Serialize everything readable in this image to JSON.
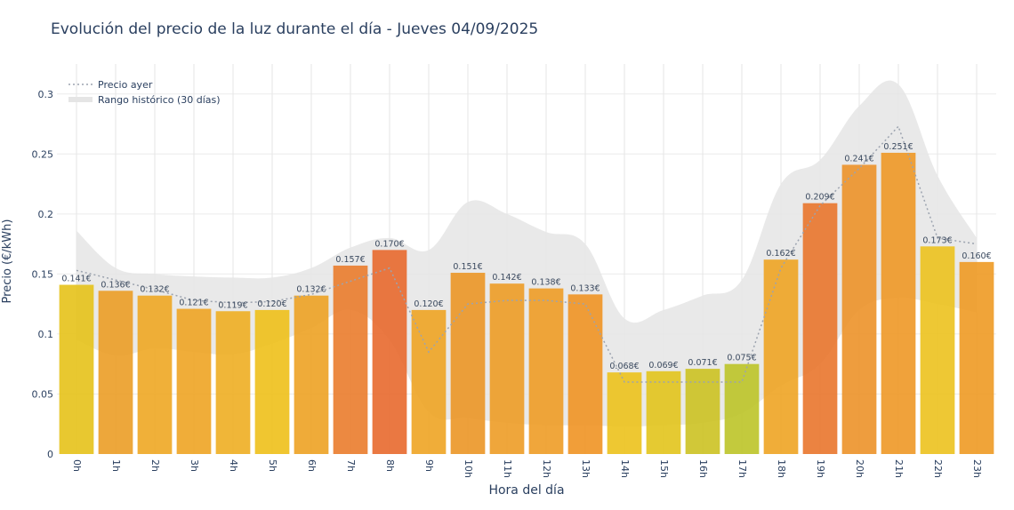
{
  "chart_data": {
    "type": "bar",
    "title": "Evolución del precio de la luz durante el día - Jueves 04/09/2025",
    "xlabel": "Hora del día",
    "ylabel": "Precio (€/kWh)",
    "ylim": [
      0,
      0.325
    ],
    "yticks": [
      0,
      0.05,
      0.1,
      0.15,
      0.2,
      0.25,
      0.3
    ],
    "ytick_labels": [
      "0",
      "0.05",
      "0.1",
      "0.15",
      "0.2",
      "0.25",
      "0.3"
    ],
    "grid": true,
    "legend_position": "top-left",
    "categories": [
      "0h",
      "1h",
      "2h",
      "3h",
      "4h",
      "5h",
      "6h",
      "7h",
      "8h",
      "9h",
      "10h",
      "11h",
      "12h",
      "13h",
      "14h",
      "15h",
      "16h",
      "17h",
      "18h",
      "19h",
      "20h",
      "21h",
      "22h",
      "23h"
    ],
    "values": [
      0.141,
      0.136,
      0.132,
      0.121,
      0.119,
      0.12,
      0.132,
      0.157,
      0.17,
      0.12,
      0.151,
      0.142,
      0.138,
      0.133,
      0.068,
      0.069,
      0.071,
      0.075,
      0.162,
      0.209,
      0.241,
      0.251,
      0.173,
      0.16
    ],
    "value_labels": [
      "0.141€",
      "0.136€",
      "0.132€",
      "0.121€",
      "0.119€",
      "0.120€",
      "0.132€",
      "0.157€",
      "0.170€",
      "0.120€",
      "0.151€",
      "0.142€",
      "0.138€",
      "0.133€",
      "0.068€",
      "0.069€",
      "0.071€",
      "0.075€",
      "0.162€",
      "0.209€",
      "0.241€",
      "0.251€",
      "0.173€",
      "0.160€"
    ],
    "bar_colors": [
      "#e6c21a",
      "#eb9d26",
      "#eea724",
      "#eea424",
      "#eeae22",
      "#eec01a",
      "#eda224",
      "#ea7c2c",
      "#e8692e",
      "#eea424",
      "#eb9626",
      "#ed9c26",
      "#ee9c26",
      "#ef9424",
      "#ecc21c",
      "#e2c41c",
      "#ccc222",
      "#bdc428",
      "#eea424",
      "#e9752c",
      "#ec9229",
      "#ee9826",
      "#ecc21e",
      "#ee9a24"
    ],
    "lines": [
      {
        "name": "Precio ayer",
        "style": "dotted",
        "color": "#9ca3af",
        "values": [
          0.153,
          0.145,
          0.137,
          0.128,
          0.126,
          0.127,
          0.133,
          0.144,
          0.155,
          0.085,
          0.125,
          0.128,
          0.128,
          0.125,
          0.06,
          0.06,
          0.06,
          0.06,
          0.155,
          0.207,
          0.238,
          0.273,
          0.18,
          0.175
        ]
      }
    ],
    "ranges": [
      {
        "name": "Rango histórico (30 días)",
        "color": "#e5e5e5",
        "upper": [
          0.186,
          0.155,
          0.15,
          0.148,
          0.147,
          0.147,
          0.155,
          0.172,
          0.18,
          0.17,
          0.21,
          0.2,
          0.185,
          0.175,
          0.113,
          0.12,
          0.132,
          0.145,
          0.225,
          0.245,
          0.29,
          0.308,
          0.232,
          0.18
        ],
        "lower": [
          0.095,
          0.082,
          0.088,
          0.085,
          0.083,
          0.092,
          0.105,
          0.12,
          0.095,
          0.035,
          0.03,
          0.026,
          0.024,
          0.024,
          0.023,
          0.024,
          0.026,
          0.034,
          0.057,
          0.075,
          0.12,
          0.13,
          0.125,
          0.118
        ]
      }
    ]
  }
}
